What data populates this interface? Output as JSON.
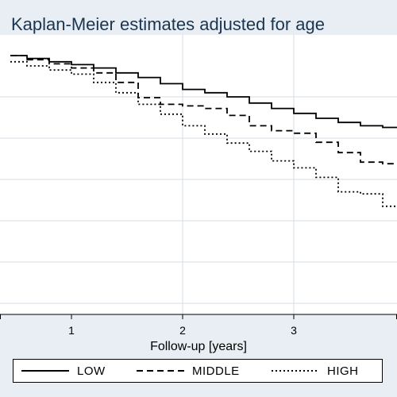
{
  "chart_data": {
    "type": "line",
    "title": "Kaplan-Meier estimates adjusted for age",
    "xlabel": "Follow-up [years]",
    "ylabel": "",
    "x_ticks": [
      "1",
      "2",
      "3"
    ],
    "xlim": [
      0.45,
      4.0
    ],
    "ylim": [
      0.1,
      1.0
    ],
    "grid": true,
    "legend_position": "bottom",
    "series": [
      {
        "name": "LOW",
        "style": "solid",
        "x": [
          0.45,
          0.6,
          0.8,
          1.0,
          1.2,
          1.4,
          1.6,
          1.8,
          2.0,
          2.2,
          2.4,
          2.6,
          2.8,
          3.0,
          3.2,
          3.4,
          3.6,
          3.8,
          3.95,
          4.0
        ],
        "y": [
          1.0,
          0.993,
          0.985,
          0.978,
          0.97,
          0.958,
          0.947,
          0.932,
          0.918,
          0.91,
          0.9,
          0.885,
          0.872,
          0.86,
          0.848,
          0.838,
          0.83,
          0.826,
          0.825,
          0.825
        ]
      },
      {
        "name": "MIDDLE",
        "style": "dashed",
        "x": [
          0.45,
          0.6,
          0.8,
          1.0,
          1.2,
          1.4,
          1.6,
          1.8,
          2.0,
          2.2,
          2.4,
          2.6,
          2.8,
          3.0,
          3.2,
          3.4,
          3.6,
          3.8,
          3.95,
          4.0
        ],
        "y": [
          1.0,
          0.99,
          0.98,
          0.97,
          0.958,
          0.935,
          0.898,
          0.882,
          0.878,
          0.872,
          0.855,
          0.83,
          0.818,
          0.812,
          0.79,
          0.765,
          0.742,
          0.738,
          0.725,
          0.725
        ]
      },
      {
        "name": "HIGH",
        "style": "dotted",
        "x": [
          0.45,
          0.6,
          0.8,
          1.0,
          1.2,
          1.4,
          1.6,
          1.8,
          2.0,
          2.2,
          2.4,
          2.6,
          2.8,
          3.0,
          3.2,
          3.4,
          3.6,
          3.8,
          3.95,
          4.0
        ],
        "y": [
          0.985,
          0.975,
          0.965,
          0.955,
          0.935,
          0.91,
          0.882,
          0.858,
          0.83,
          0.81,
          0.788,
          0.768,
          0.745,
          0.728,
          0.705,
          0.67,
          0.665,
          0.635,
          0.622,
          0.62
        ]
      }
    ]
  }
}
